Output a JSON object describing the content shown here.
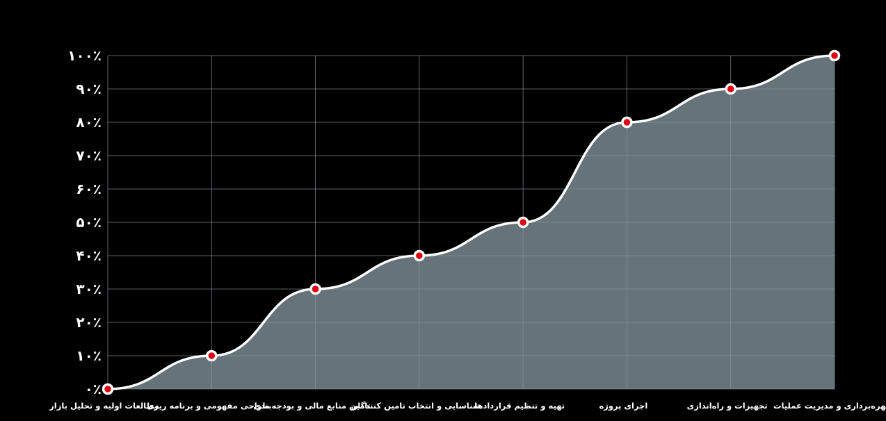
{
  "chart_data": {
    "type": "area",
    "categories": [
      "مطالعات اولیه و تحلیل بازار",
      "طراحی مفهومی و برنامه ریزی",
      "تامین منابع مالی و بودجه‌بندی",
      "شناسایی و انتخاب تامین کنندگان",
      "تهیه و تنظیم قراردادها",
      "اجرای پروژه",
      "تجهیزات و راه‌اندازی",
      "بهره‌برداری و مدیریت عملیات"
    ],
    "values": [
      0,
      10,
      30,
      40,
      50,
      80,
      90,
      100
    ],
    "ylim": [
      0,
      100
    ],
    "yticks": [
      {
        "value": 0,
        "label": "۰٪"
      },
      {
        "value": 10,
        "label": "۱۰٪"
      },
      {
        "value": 20,
        "label": "۲۰٪"
      },
      {
        "value": 30,
        "label": "۳۰٪"
      },
      {
        "value": 40,
        "label": "۴۰٪"
      },
      {
        "value": 50,
        "label": "۵۰٪"
      },
      {
        "value": 60,
        "label": "۶۰٪"
      },
      {
        "value": 70,
        "label": "۷۰٪"
      },
      {
        "value": 80,
        "label": "۸۰٪"
      },
      {
        "value": 90,
        "label": "۹۰٪"
      },
      {
        "value": 100,
        "label": "۱۰۰٪"
      }
    ],
    "grid": true,
    "colors": {
      "background": "#000000",
      "area_fill": "#66737a",
      "line": "#ffffff",
      "marker_fill": "#e3000f",
      "marker_stroke": "#ffffff",
      "grid": "#8a9599",
      "text": "#ffffff"
    }
  }
}
